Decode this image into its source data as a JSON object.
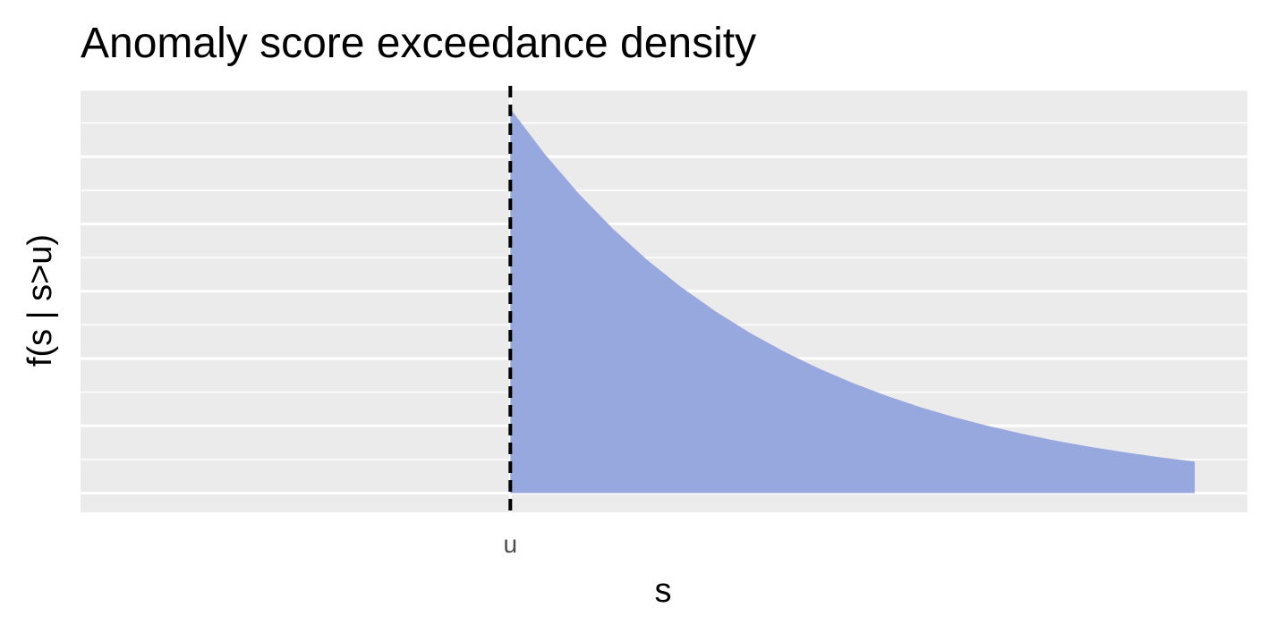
{
  "chart_data": {
    "type": "area",
    "title": "Anomaly score exceedance density",
    "xlabel": "s",
    "ylabel": "f(s | s>u)",
    "x_ticks": [
      {
        "label": "u",
        "value": 0
      }
    ],
    "y_ticks": [],
    "threshold": {
      "label": "u",
      "value": 0,
      "style": "dashed",
      "color": "#000000"
    },
    "series": [
      {
        "curve": "exponential decay beyond threshold",
        "x": [
          0,
          0.5,
          1.0,
          1.5,
          2.0,
          2.5,
          3.0,
          3.5,
          4.0,
          4.5,
          5.0,
          5.5,
          6.0,
          6.5,
          7.0,
          7.5,
          8.0,
          8.5,
          9.0,
          9.5,
          10.0
        ],
        "y": [
          1.0,
          0.8825,
          0.7788,
          0.6873,
          0.6065,
          0.5353,
          0.4724,
          0.4169,
          0.3679,
          0.3247,
          0.2865,
          0.2528,
          0.2231,
          0.1969,
          0.1738,
          0.1534,
          0.1353,
          0.1194,
          0.1054,
          0.093,
          0.0821
        ],
        "fill": "#97a8df"
      }
    ],
    "xlim": [
      -6.28,
      10.77
    ],
    "ylim": [
      -0.05,
      1.05
    ],
    "grid": true,
    "panel_background": "#ebebeb",
    "grid_color": "#ffffff",
    "legend": "none"
  }
}
